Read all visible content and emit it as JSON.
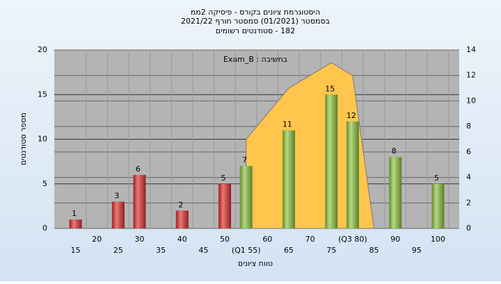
{
  "chart_data": {
    "type": "bar",
    "title": [
      "היסטוגרמת ציונים בקורס - פיסיקה 2ממ",
      "בסמסטר  (01/2021)  סמסטר חורף 2021/22",
      "182 - סטודנטים רשומים"
    ],
    "annotation": "Exam_B : בחשיבה",
    "y_label": "מספר סטודנטים",
    "x_label": "טווח ציונים",
    "xlim": [
      10,
      105
    ],
    "xticks": [
      15,
      20,
      25,
      30,
      35,
      40,
      45,
      50,
      {
        "value": 55,
        "label": "(Q1 55)"
      },
      60,
      65,
      70,
      75,
      {
        "value": 80,
        "label": "(Q3 80)"
      },
      85,
      90,
      95,
      100
    ],
    "ylim": [
      0,
      20
    ],
    "yticks": [
      0,
      5,
      10,
      15,
      20
    ],
    "y2lim": [
      0,
      14
    ],
    "y2ticks": [
      0,
      2,
      4,
      6,
      8,
      10,
      12,
      14
    ],
    "grid": true,
    "bars": {
      "x": [
        15,
        25,
        30,
        40,
        50,
        55,
        65,
        75,
        80,
        90,
        100
      ],
      "values": [
        1,
        3,
        6,
        2,
        5,
        7,
        11,
        15,
        12,
        8,
        5
      ],
      "colors": [
        "#e03030",
        "#e03030",
        "#e03030",
        "#e03030",
        "#e03030",
        "#8dc63f",
        "#8dc63f",
        "#8dc63f",
        "#8dc63f",
        "#8dc63f",
        "#8dc63f"
      ]
    },
    "area": {
      "axis": "y2",
      "color": "#ffc54d",
      "x": [
        55,
        65,
        75,
        80,
        85
      ],
      "values": [
        7,
        11,
        13,
        12,
        0
      ]
    }
  }
}
